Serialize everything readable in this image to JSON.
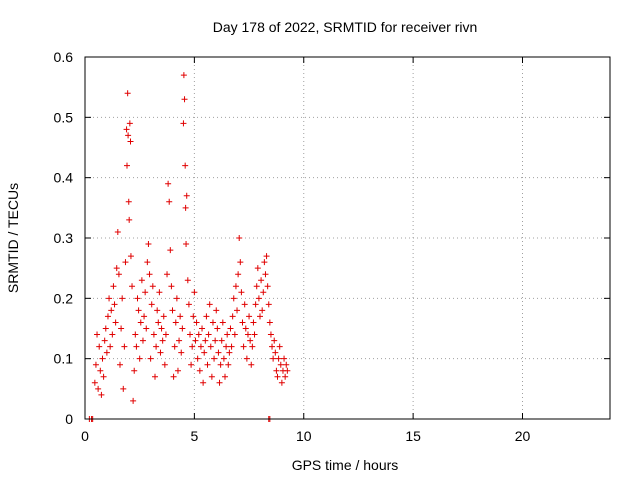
{
  "chart_data": {
    "type": "scatter",
    "title": "Day 178 of 2022, SRMTID for receiver rivn",
    "xlabel": "GPS time / hours",
    "ylabel": "SRMTID / TECUs",
    "xlim": [
      0,
      24
    ],
    "ylim": [
      0,
      0.6
    ],
    "xticks": [
      "0",
      "5",
      "10",
      "15",
      "20"
    ],
    "yticks": [
      "0",
      "0.1",
      "0.2",
      "0.3",
      "0.4",
      "0.5",
      "0.6"
    ],
    "grid": true,
    "marker": "+",
    "color": "#e00000",
    "points": [
      [
        0.2,
        0
      ],
      [
        0.3,
        0
      ],
      [
        0.35,
        0
      ],
      [
        8.4,
        0
      ],
      [
        8.45,
        0
      ],
      [
        0.45,
        0.06
      ],
      [
        0.5,
        0.09
      ],
      [
        0.55,
        0.14
      ],
      [
        0.6,
        0.05
      ],
      [
        0.65,
        0.12
      ],
      [
        0.7,
        0.08
      ],
      [
        0.75,
        0.04
      ],
      [
        0.8,
        0.1
      ],
      [
        0.85,
        0.07
      ],
      [
        0.9,
        0.13
      ],
      [
        0.95,
        0.15
      ],
      [
        1.0,
        0.11
      ],
      [
        1.05,
        0.17
      ],
      [
        1.1,
        0.2
      ],
      [
        1.15,
        0.12
      ],
      [
        1.2,
        0.18
      ],
      [
        1.25,
        0.14
      ],
      [
        1.3,
        0.22
      ],
      [
        1.35,
        0.19
      ],
      [
        1.4,
        0.16
      ],
      [
        1.45,
        0.25
      ],
      [
        1.5,
        0.31
      ],
      [
        1.55,
        0.24
      ],
      [
        1.6,
        0.09
      ],
      [
        1.65,
        0.15
      ],
      [
        1.7,
        0.2
      ],
      [
        1.75,
        0.05
      ],
      [
        1.8,
        0.12
      ],
      [
        1.85,
        0.26
      ],
      [
        1.9,
        0.48
      ],
      [
        1.92,
        0.42
      ],
      [
        1.95,
        0.54
      ],
      [
        1.97,
        0.47
      ],
      [
        2.0,
        0.36
      ],
      [
        2.02,
        0.33
      ],
      [
        2.05,
        0.49
      ],
      [
        2.08,
        0.46
      ],
      [
        2.1,
        0.27
      ],
      [
        2.15,
        0.22
      ],
      [
        2.2,
        0.03
      ],
      [
        2.25,
        0.08
      ],
      [
        2.3,
        0.14
      ],
      [
        2.35,
        0.12
      ],
      [
        2.4,
        0.2
      ],
      [
        2.45,
        0.18
      ],
      [
        2.5,
        0.1
      ],
      [
        2.55,
        0.16
      ],
      [
        2.6,
        0.23
      ],
      [
        2.65,
        0.13
      ],
      [
        2.7,
        0.17
      ],
      [
        2.75,
        0.21
      ],
      [
        2.8,
        0.15
      ],
      [
        2.85,
        0.26
      ],
      [
        2.9,
        0.29
      ],
      [
        2.95,
        0.24
      ],
      [
        3.0,
        0.1
      ],
      [
        3.05,
        0.19
      ],
      [
        3.1,
        0.22
      ],
      [
        3.15,
        0.14
      ],
      [
        3.2,
        0.07
      ],
      [
        3.25,
        0.12
      ],
      [
        3.3,
        0.18
      ],
      [
        3.35,
        0.16
      ],
      [
        3.4,
        0.21
      ],
      [
        3.45,
        0.11
      ],
      [
        3.5,
        0.15
      ],
      [
        3.55,
        0.13
      ],
      [
        3.6,
        0.17
      ],
      [
        3.65,
        0.09
      ],
      [
        3.7,
        0.14
      ],
      [
        3.75,
        0.24
      ],
      [
        3.8,
        0.39
      ],
      [
        3.85,
        0.36
      ],
      [
        3.9,
        0.28
      ],
      [
        3.95,
        0.22
      ],
      [
        4.0,
        0.18
      ],
      [
        4.05,
        0.07
      ],
      [
        4.1,
        0.12
      ],
      [
        4.15,
        0.16
      ],
      [
        4.2,
        0.2
      ],
      [
        4.25,
        0.08
      ],
      [
        4.3,
        0.13
      ],
      [
        4.35,
        0.17
      ],
      [
        4.4,
        0.11
      ],
      [
        4.45,
        0.15
      ],
      [
        4.5,
        0.49
      ],
      [
        4.52,
        0.57
      ],
      [
        4.55,
        0.53
      ],
      [
        4.58,
        0.42
      ],
      [
        4.6,
        0.35
      ],
      [
        4.62,
        0.29
      ],
      [
        4.65,
        0.37
      ],
      [
        4.7,
        0.23
      ],
      [
        4.75,
        0.19
      ],
      [
        4.8,
        0.14
      ],
      [
        4.85,
        0.09
      ],
      [
        4.9,
        0.12
      ],
      [
        4.95,
        0.17
      ],
      [
        5.0,
        0.21
      ],
      [
        5.05,
        0.13
      ],
      [
        5.1,
        0.16
      ],
      [
        5.15,
        0.1
      ],
      [
        5.2,
        0.14
      ],
      [
        5.25,
        0.08
      ],
      [
        5.3,
        0.12
      ],
      [
        5.35,
        0.15
      ],
      [
        5.4,
        0.06
      ],
      [
        5.45,
        0.11
      ],
      [
        5.5,
        0.13
      ],
      [
        5.55,
        0.17
      ],
      [
        5.6,
        0.09
      ],
      [
        5.65,
        0.14
      ],
      [
        5.7,
        0.19
      ],
      [
        5.75,
        0.12
      ],
      [
        5.8,
        0.07
      ],
      [
        5.85,
        0.16
      ],
      [
        5.9,
        0.1
      ],
      [
        5.95,
        0.13
      ],
      [
        6.0,
        0.18
      ],
      [
        6.05,
        0.15
      ],
      [
        6.1,
        0.11
      ],
      [
        6.15,
        0.06
      ],
      [
        6.2,
        0.09
      ],
      [
        6.25,
        0.13
      ],
      [
        6.3,
        0.16
      ],
      [
        6.35,
        0.1
      ],
      [
        6.4,
        0.07
      ],
      [
        6.45,
        0.12
      ],
      [
        6.5,
        0.14
      ],
      [
        6.55,
        0.09
      ],
      [
        6.6,
        0.11
      ],
      [
        6.65,
        0.15
      ],
      [
        6.7,
        0.12
      ],
      [
        6.75,
        0.17
      ],
      [
        6.8,
        0.2
      ],
      [
        6.85,
        0.14
      ],
      [
        6.9,
        0.22
      ],
      [
        6.95,
        0.18
      ],
      [
        7.0,
        0.24
      ],
      [
        7.05,
        0.3
      ],
      [
        7.1,
        0.26
      ],
      [
        7.15,
        0.21
      ],
      [
        7.2,
        0.16
      ],
      [
        7.25,
        0.12
      ],
      [
        7.3,
        0.19
      ],
      [
        7.35,
        0.15
      ],
      [
        7.4,
        0.1
      ],
      [
        7.45,
        0.14
      ],
      [
        7.5,
        0.17
      ],
      [
        7.55,
        0.13
      ],
      [
        7.6,
        0.09
      ],
      [
        7.65,
        0.12
      ],
      [
        7.7,
        0.16
      ],
      [
        7.75,
        0.14
      ],
      [
        7.8,
        0.19
      ],
      [
        7.85,
        0.22
      ],
      [
        7.9,
        0.25
      ],
      [
        7.95,
        0.2
      ],
      [
        8.0,
        0.17
      ],
      [
        8.05,
        0.23
      ],
      [
        8.1,
        0.18
      ],
      [
        8.15,
        0.21
      ],
      [
        8.2,
        0.26
      ],
      [
        8.25,
        0.24
      ],
      [
        8.3,
        0.27
      ],
      [
        8.35,
        0.22
      ],
      [
        8.4,
        0.19
      ],
      [
        8.45,
        0.16
      ],
      [
        8.5,
        0.14
      ],
      [
        8.55,
        0.12
      ],
      [
        8.6,
        0.1
      ],
      [
        8.65,
        0.13
      ],
      [
        8.7,
        0.11
      ],
      [
        8.75,
        0.08
      ],
      [
        8.8,
        0.07
      ],
      [
        8.85,
        0.1
      ],
      [
        8.9,
        0.12
      ],
      [
        8.95,
        0.09
      ],
      [
        9.0,
        0.06
      ],
      [
        9.05,
        0.08
      ],
      [
        9.1,
        0.1
      ],
      [
        9.15,
        0.07
      ],
      [
        9.2,
        0.09
      ],
      [
        9.25,
        0.08
      ]
    ]
  }
}
